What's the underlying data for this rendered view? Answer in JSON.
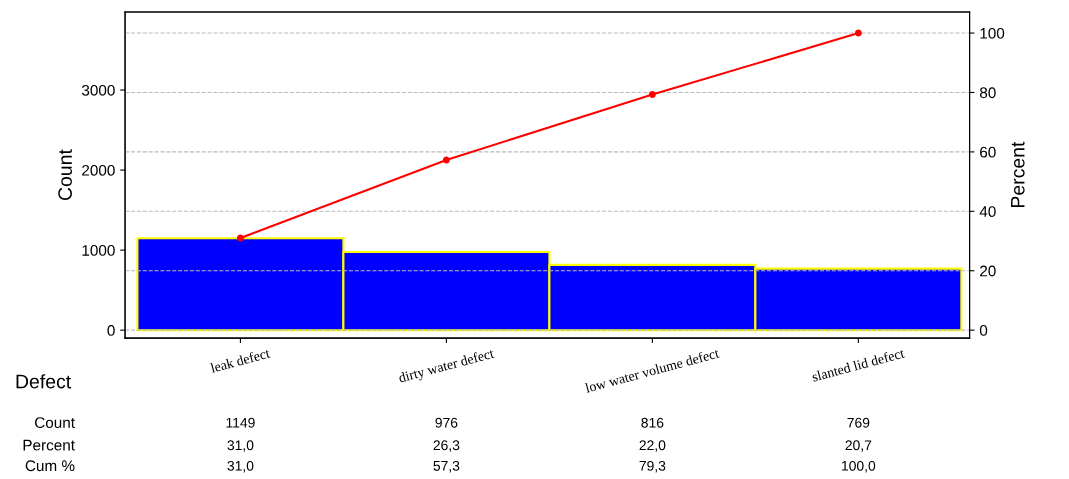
{
  "chart_data": {
    "type": "bar",
    "xlabel": "Defect",
    "ylabel": "Count",
    "y2label": "Percent",
    "categories": [
      "leak defect",
      "dirty water defect",
      "low water volume defect",
      "slanted lid defect"
    ],
    "series": [
      {
        "color": "#0000ff",
        "values": [
          1149,
          976,
          816,
          769
        ],
        "value_labels": [
          "1149",
          "976",
          "816",
          "769"
        ]
      },
      {
        "type": "line",
        "axis": "y2",
        "color": "#ff0000",
        "values": [
          31.0,
          57.3,
          79.3,
          100.0
        ],
        "value_labels": [
          "31,0",
          "57,3",
          "79,3",
          "100,0"
        ]
      }
    ],
    "annotations": [
      "Count",
      "Percent",
      "31,0",
      "26,3",
      "22,0",
      "20,7",
      "Cum %"
    ],
    "ylim": [
      -100,
      3975
    ],
    "yticks": [
      0,
      1000,
      2000,
      3000
    ],
    "y2lim": [
      -2.7,
      107.1
    ],
    "y2ticks": [
      0,
      20,
      40,
      60,
      80,
      100
    ],
    "grid": "y",
    "marker": "circle",
    "legend": false
  }
}
